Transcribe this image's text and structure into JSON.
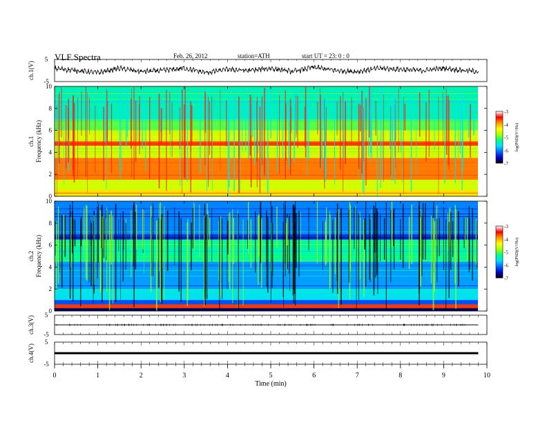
{
  "header": {
    "title": "VLF  Spectra",
    "date": "Feb. 26, 2012",
    "station": "station=ATH",
    "start": "start  UT  =   23: 0  : 0"
  },
  "chart_data": [
    {
      "type": "line",
      "panel": "ch1-waveform",
      "ylabel": "ch.1(V)",
      "ylim": [
        -5,
        5
      ],
      "yticks": [
        "5",
        "-5"
      ],
      "xlim": [
        0,
        10
      ],
      "series": [
        {
          "x": [
            0,
            0.5,
            1,
            1.5,
            2,
            2.5,
            3,
            3.5,
            4,
            4.5,
            5,
            5.5,
            6,
            6.5,
            7,
            7.5,
            8,
            8.5,
            9,
            9.5,
            9.8
          ],
          "values": [
            1,
            0,
            -1,
            1,
            -0.5,
            0,
            1,
            -1,
            0.5,
            0,
            1,
            -0.5,
            1.5,
            0,
            -0.5,
            1,
            0.5,
            0,
            1,
            0,
            -0.5
          ]
        }
      ]
    },
    {
      "type": "heatmap",
      "panel": "ch1-spectrogram",
      "ylabel": "Frequency  (kHz)",
      "channel_label": "ch.1",
      "ylim": [
        0,
        10
      ],
      "yticks": [
        "0",
        "2",
        "4",
        "6",
        "8",
        "10"
      ],
      "xlim": [
        0,
        9.8
      ],
      "colorbar": {
        "label": "log(PSD)(V²/Hz)",
        "range": [
          -7,
          -3
        ],
        "ticks": [
          "-3",
          "-4",
          "-5",
          "-6",
          "-7"
        ],
        "colors": [
          "#000000",
          "#0000cc",
          "#0066ff",
          "#00ddff",
          "#00ff88",
          "#aaff00",
          "#ffff00",
          "#ff9900",
          "#ff0000",
          "#ffffff"
        ]
      },
      "bands": [
        {
          "from": 0,
          "to": 0.6,
          "level": -4.2
        },
        {
          "from": 0.6,
          "to": 1.5,
          "level": -4.6
        },
        {
          "from": 1.5,
          "to": 3.5,
          "level": -3.8
        },
        {
          "from": 3.5,
          "to": 4.6,
          "level": -4.6
        },
        {
          "from": 4.6,
          "to": 5.0,
          "level": -3.6
        },
        {
          "from": 5.0,
          "to": 6.0,
          "level": -4.6
        },
        {
          "from": 6.0,
          "to": 7.0,
          "level": -5.0
        },
        {
          "from": 7.0,
          "to": 10.0,
          "level": -5.4
        }
      ]
    },
    {
      "type": "heatmap",
      "panel": "ch2-spectrogram",
      "ylabel": "Frequency  (kHz)",
      "channel_label": "ch.2",
      "ylim": [
        0,
        10
      ],
      "yticks": [
        "0",
        "2",
        "4",
        "6",
        "8",
        "10"
      ],
      "xlim": [
        0,
        9.8
      ],
      "colorbar": {
        "label": "log(PSD)(V²/Hz)",
        "range": [
          -7,
          -3
        ],
        "ticks": [
          "-3",
          "-4",
          "-5",
          "-6",
          "-7"
        ],
        "colors": [
          "#000000",
          "#0000cc",
          "#0066ff",
          "#00ddff",
          "#00ff88",
          "#aaff00",
          "#ffff00",
          "#ff9900",
          "#ff0000",
          "#ffffff"
        ]
      },
      "bands": [
        {
          "from": 0,
          "to": 0.3,
          "level": -6.8
        },
        {
          "from": 0.3,
          "to": 0.6,
          "level": -3.6
        },
        {
          "from": 0.6,
          "to": 1.0,
          "level": -6.2
        },
        {
          "from": 1.0,
          "to": 2.0,
          "level": -5.6
        },
        {
          "from": 2.0,
          "to": 4.5,
          "level": -5.9
        },
        {
          "from": 4.5,
          "to": 6.5,
          "level": -5.3
        },
        {
          "from": 6.5,
          "to": 7.0,
          "level": -6.3
        },
        {
          "from": 7.0,
          "to": 10.0,
          "level": -6.0
        }
      ]
    },
    {
      "type": "line",
      "panel": "ch3-waveform",
      "ylabel": "ch.3(V)",
      "ylim": [
        -5,
        5
      ],
      "yticks": [
        "5",
        "-5"
      ],
      "xlim": [
        0,
        10
      ],
      "series": [
        {
          "x": [
            0,
            9.8
          ],
          "values": [
            0,
            0
          ]
        }
      ]
    },
    {
      "type": "line",
      "panel": "ch4-waveform",
      "ylabel": "ch.4(V)",
      "ylim": [
        -5,
        5
      ],
      "yticks": [
        "5",
        "-5"
      ],
      "xlim": [
        0,
        10
      ],
      "series": [
        {
          "x": [
            0,
            9.8
          ],
          "values": [
            0,
            0
          ]
        }
      ]
    }
  ],
  "xaxis": {
    "label": "Time  (min)",
    "ticks": [
      "0",
      "1",
      "2",
      "3",
      "4",
      "5",
      "6",
      "7",
      "8",
      "9",
      "10"
    ]
  }
}
